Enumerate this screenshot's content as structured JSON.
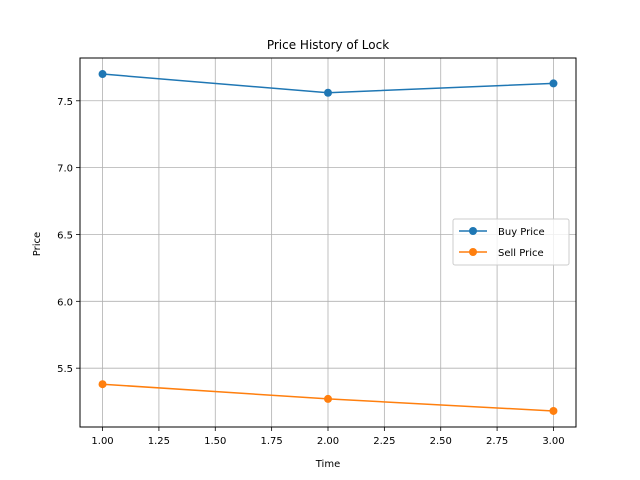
{
  "chart_data": {
    "type": "line",
    "title": "Price History of Lock",
    "xlabel": "Time",
    "ylabel": "Price",
    "x": [
      1.0,
      2.0,
      3.0
    ],
    "xlim": [
      0.9,
      3.1
    ],
    "ylim": [
      5.06,
      7.82
    ],
    "xticks": [
      1.0,
      1.25,
      1.5,
      1.75,
      2.0,
      2.25,
      2.5,
      2.75,
      3.0
    ],
    "xtick_labels": [
      "1.00",
      "1.25",
      "1.50",
      "1.75",
      "2.00",
      "2.25",
      "2.50",
      "2.75",
      "3.00"
    ],
    "yticks": [
      5.5,
      6.0,
      6.5,
      7.0,
      7.5
    ],
    "ytick_labels": [
      "5.5",
      "6.0",
      "6.5",
      "7.0",
      "7.5"
    ],
    "grid": true,
    "legend_position": "center-right",
    "series": [
      {
        "name": "Buy Price",
        "color": "#1f77b4",
        "marker": "circle",
        "values": [
          7.7,
          7.56,
          7.63
        ]
      },
      {
        "name": "Sell Price",
        "color": "#ff7f0e",
        "marker": "circle",
        "values": [
          5.38,
          5.27,
          5.18
        ]
      }
    ]
  }
}
